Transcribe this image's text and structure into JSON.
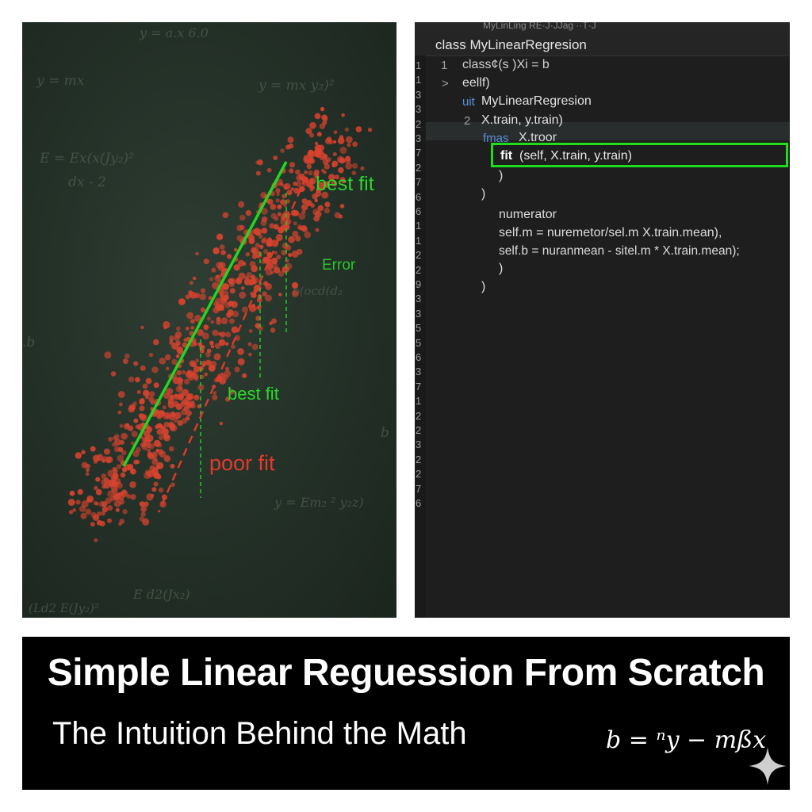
{
  "scatter_panel": {
    "labels": {
      "best_fit_top": "best fit",
      "error": "Error",
      "best_fit_mid": "best fit",
      "poor_fit": "poor fit"
    },
    "chalk_formulas": [
      "y = mx",
      "y =  mx  y₂)²",
      "E =  Ex(x(Jy₂)²",
      "dx - 2",
      "y =  Em₂ ²  y₂z)",
      "E d2(Jx₂)",
      "(Ld2 E(Jy₂)²",
      "y =  a.x 6.0",
      "p(ocd(d₂",
      ".b",
      "b"
    ],
    "colors": {
      "best_fit": "#22d622",
      "poor_fit": "#e03a2a",
      "points": "#d8432f"
    }
  },
  "editor": {
    "window_title": "MyLinLing  RE·J·JJag  ··T·J",
    "breadcrumb": "class MyLinearRegresion",
    "gutter_numbers": [
      "1",
      "1",
      "3",
      "3",
      "2",
      "3",
      "7",
      "2",
      "7",
      "6",
      "6",
      "1",
      "1",
      "2",
      "2",
      "9",
      "3",
      "3",
      "5",
      "5",
      "6",
      "3",
      "7",
      "1",
      "2",
      "2",
      "3",
      "2",
      "2",
      "7",
      "6"
    ],
    "lines": {
      "l1_num": "1",
      "l1": "class¢(s )Xi = b",
      "l2_num": ">",
      "l2": "eellf)",
      "l3_kw": "uit",
      "l3": "MyLinearRegresion",
      "l4_num": "2",
      "l4": "X.train, y.train)",
      "l5_kw": "fmas",
      "l5": "X.troor",
      "l6_kw": "fit",
      "l6": "(self, X.train, y.train)",
      "l7": ")",
      "l8": ")",
      "l9": "numerator",
      "l10": "self.m = nuremetor/sel.m  X.train.mean),",
      "l11": "self.b = nuranmean  -  sitel.m  *  X.train.mean);",
      "l12": ")",
      "l13": ")"
    },
    "highlight_color": "#1fdc1f"
  },
  "banner": {
    "title": "Simple Linear Reguession From Scratch",
    "subtitle": "The Intuition Behind the Math",
    "formula": "b = ⁿy − mßx"
  }
}
